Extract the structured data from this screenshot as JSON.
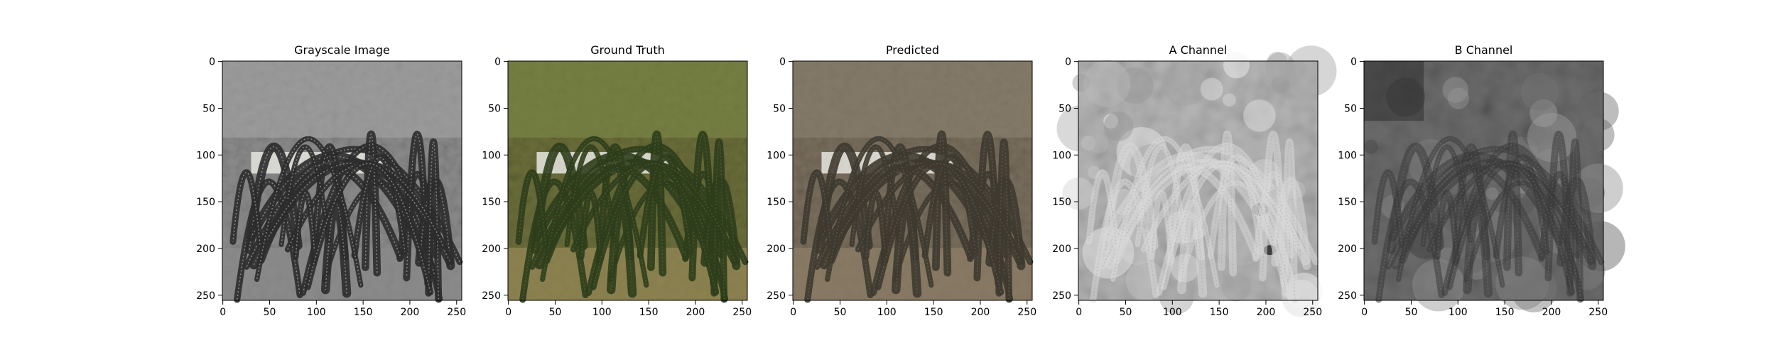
{
  "figure": {
    "background": "#ffffff",
    "axis_color": "#000000",
    "panels": [
      {
        "id": "grayscale",
        "title": "Grayscale Image",
        "colormap": "gray",
        "tint": "#9a9a9a",
        "content": "grayscale-cactus-photo"
      },
      {
        "id": "ground-truth",
        "title": "Ground Truth",
        "colormap": "color",
        "tint": "#6f7a3d",
        "content": "color-cactus-photo-ground-truth"
      },
      {
        "id": "predicted",
        "title": "Predicted",
        "colormap": "color",
        "tint": "#7d7260",
        "content": "color-cactus-photo-predicted"
      },
      {
        "id": "a-channel",
        "title": "A Channel",
        "colormap": "gray",
        "tint": "#b8b8b8",
        "content": "a-channel-map"
      },
      {
        "id": "b-channel",
        "title": "B Channel",
        "colormap": "gray",
        "tint": "#6a6a6a",
        "content": "b-channel-map"
      }
    ],
    "x_ticks": [
      "0",
      "50",
      "100",
      "150",
      "200",
      "250"
    ],
    "y_ticks": [
      "0",
      "50",
      "100",
      "150",
      "200",
      "250"
    ],
    "tick_values": [
      0,
      50,
      100,
      150,
      200,
      250
    ],
    "image_size": 256
  }
}
